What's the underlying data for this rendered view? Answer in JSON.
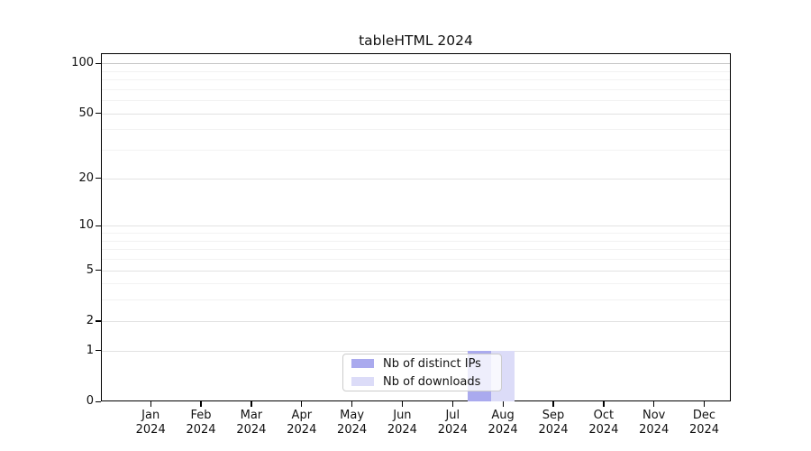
{
  "title": "tableHTML 2024",
  "chart_data": {
    "type": "bar",
    "title": "tableHTML 2024",
    "categories": [
      "Jan 2024",
      "Feb 2024",
      "Mar 2024",
      "Apr 2024",
      "May 2024",
      "Jun 2024",
      "Jul 2024",
      "Aug 2024",
      "Sep 2024",
      "Oct 2024",
      "Nov 2024",
      "Dec 2024"
    ],
    "x_tick_months": [
      "Jan",
      "Feb",
      "Mar",
      "Apr",
      "May",
      "Jun",
      "Jul",
      "Aug",
      "Sep",
      "Oct",
      "Nov",
      "Dec"
    ],
    "x_tick_year": "2024",
    "series": [
      {
        "name": "Nb of distinct IPs",
        "color": "#aaaaee",
        "values": [
          0,
          0,
          0,
          0,
          0,
          0,
          0,
          1,
          0,
          0,
          0,
          0
        ]
      },
      {
        "name": "Nb of downloads",
        "color": "#dcdcf8",
        "values": [
          0,
          0,
          0,
          0,
          0,
          0,
          0,
          1,
          0,
          0,
          0,
          0
        ]
      }
    ],
    "y_axis": {
      "scale": "log10(1+x)",
      "tick_values": [
        100,
        50,
        20,
        10,
        5,
        2,
        1,
        0
      ],
      "gridline_values": [
        1,
        2,
        3,
        4,
        5,
        6,
        7,
        8,
        9,
        10,
        20,
        30,
        40,
        50,
        60,
        70,
        80,
        90,
        100
      ],
      "ylim": [
        0,
        115
      ]
    },
    "xlabel": "",
    "ylabel": "",
    "legend_position": "bottom-center",
    "grid": true
  },
  "colors": {
    "bar_distinct_ips": "#aaaaee",
    "bar_downloads": "#dcdcf8",
    "gridline_minor": "#f2f2f2",
    "gridline_major": "#e2e2e2",
    "gridline_top": "#c6c6c6",
    "axis": "#000000",
    "legend_border": "#cccccc"
  }
}
